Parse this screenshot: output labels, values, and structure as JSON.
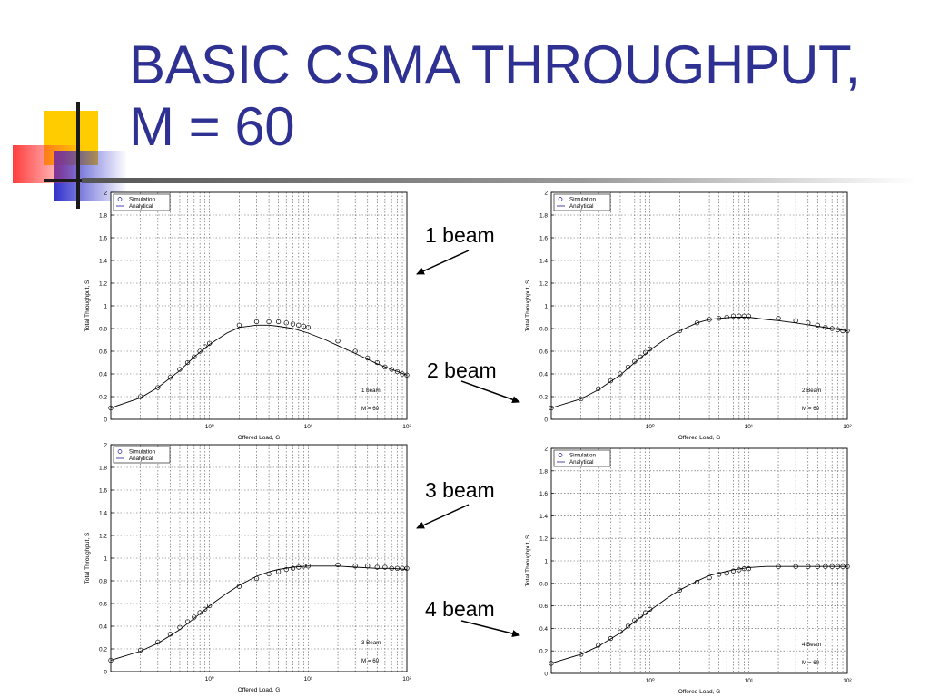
{
  "slide": {
    "title": "BASIC CSMA THROUGHPUT, M = 60",
    "title_color": "#2e3192",
    "accent_colors": {
      "yellow": "#ffcc00",
      "blue": "#3333cc",
      "red": "#ff3333",
      "dark": "#1a1a1a"
    }
  },
  "callouts": [
    {
      "label": "1 beam",
      "points_to": "top-left"
    },
    {
      "label": "2 beam",
      "points_to": "top-right"
    },
    {
      "label": "3 beam",
      "points_to": "bottom-left"
    },
    {
      "label": "4 beam",
      "points_to": "bottom-right"
    }
  ],
  "chart_data": [
    {
      "type": "line",
      "xscale": "log",
      "xlim": [
        0.1,
        100
      ],
      "ylim": [
        0,
        2
      ],
      "xlabel": "Offered Load, G",
      "ylabel": "Total Throughput, S",
      "xtick_labels": [
        "10⁰",
        "10¹",
        "10²"
      ],
      "ytick_labels": [
        "0",
        "0.2",
        "0.4",
        "0.6",
        "0.8",
        "1",
        "1.2",
        "1.4",
        "1.6",
        "1.8",
        "2"
      ],
      "grid": true,
      "legend_position": "top-left",
      "annotation": [
        "1 beam",
        "M = 60"
      ],
      "series": [
        {
          "name": "Simulation",
          "marker": "circle",
          "x": [
            0.1,
            0.2,
            0.3,
            0.4,
            0.5,
            0.6,
            0.7,
            0.8,
            0.9,
            1,
            2,
            3,
            4,
            5,
            6,
            7,
            8,
            9,
            10,
            20,
            30,
            40,
            50,
            60,
            70,
            80,
            90,
            100
          ],
          "y": [
            0.1,
            0.2,
            0.28,
            0.37,
            0.44,
            0.5,
            0.55,
            0.6,
            0.64,
            0.67,
            0.83,
            0.86,
            0.86,
            0.86,
            0.85,
            0.84,
            0.83,
            0.82,
            0.81,
            0.69,
            0.6,
            0.54,
            0.5,
            0.46,
            0.44,
            0.42,
            0.4,
            0.39
          ]
        },
        {
          "name": "Analytical",
          "marker": "line",
          "x": [
            0.1,
            0.2,
            0.3,
            0.5,
            0.7,
            1,
            1.5,
            2,
            3,
            4,
            5,
            7,
            10,
            15,
            20,
            30,
            50,
            70,
            100
          ],
          "y": [
            0.1,
            0.19,
            0.28,
            0.43,
            0.55,
            0.66,
            0.76,
            0.81,
            0.83,
            0.83,
            0.82,
            0.8,
            0.76,
            0.7,
            0.65,
            0.58,
            0.49,
            0.44,
            0.39
          ]
        }
      ]
    },
    {
      "type": "line",
      "xscale": "log",
      "xlim": [
        0.1,
        100
      ],
      "ylim": [
        0,
        2
      ],
      "xlabel": "Offered Load, G",
      "ylabel": "Total Throughput, S",
      "xtick_labels": [
        "10⁰",
        "10¹",
        "10²"
      ],
      "ytick_labels": [
        "0",
        "0.2",
        "0.4",
        "0.6",
        "0.8",
        "1",
        "1.2",
        "1.4",
        "1.6",
        "1.8",
        "2"
      ],
      "grid": true,
      "legend_position": "top-left",
      "annotation": [
        "2 Beam",
        "M = 60"
      ],
      "series": [
        {
          "name": "Simulation",
          "marker": "circle",
          "x": [
            0.1,
            0.2,
            0.3,
            0.4,
            0.5,
            0.6,
            0.7,
            0.8,
            0.9,
            1,
            2,
            3,
            4,
            5,
            6,
            7,
            8,
            9,
            10,
            20,
            30,
            40,
            50,
            60,
            70,
            80,
            90,
            100
          ],
          "y": [
            0.1,
            0.18,
            0.27,
            0.34,
            0.4,
            0.46,
            0.51,
            0.55,
            0.59,
            0.62,
            0.78,
            0.85,
            0.88,
            0.89,
            0.9,
            0.91,
            0.91,
            0.91,
            0.91,
            0.89,
            0.87,
            0.85,
            0.83,
            0.81,
            0.8,
            0.79,
            0.78,
            0.78
          ]
        },
        {
          "name": "Analytical",
          "marker": "line",
          "x": [
            0.1,
            0.2,
            0.3,
            0.5,
            0.7,
            1,
            1.5,
            2,
            3,
            4,
            5,
            7,
            10,
            15,
            20,
            30,
            50,
            70,
            100
          ],
          "y": [
            0.1,
            0.18,
            0.26,
            0.39,
            0.5,
            0.61,
            0.72,
            0.78,
            0.85,
            0.88,
            0.89,
            0.9,
            0.9,
            0.88,
            0.87,
            0.85,
            0.82,
            0.8,
            0.78
          ]
        }
      ]
    },
    {
      "type": "line",
      "xscale": "log",
      "xlim": [
        0.1,
        100
      ],
      "ylim": [
        0,
        2
      ],
      "xlabel": "Offered Load, G",
      "ylabel": "Total Throughput, S",
      "xtick_labels": [
        "10⁰",
        "10¹",
        "10²"
      ],
      "ytick_labels": [
        "0",
        "0.2",
        "0.4",
        "0.6",
        "0.8",
        "1",
        "1.2",
        "1.4",
        "1.6",
        "1.8",
        "2"
      ],
      "grid": true,
      "legend_position": "top-left",
      "annotation": [
        "3 Beam",
        "M = 60"
      ],
      "series": [
        {
          "name": "Simulation",
          "marker": "circle",
          "x": [
            0.1,
            0.2,
            0.3,
            0.4,
            0.5,
            0.6,
            0.7,
            0.8,
            0.9,
            1,
            2,
            3,
            4,
            5,
            6,
            7,
            8,
            9,
            10,
            20,
            30,
            40,
            50,
            60,
            70,
            80,
            90,
            100
          ],
          "y": [
            0.1,
            0.19,
            0.26,
            0.33,
            0.39,
            0.44,
            0.48,
            0.52,
            0.55,
            0.58,
            0.75,
            0.82,
            0.86,
            0.88,
            0.9,
            0.91,
            0.92,
            0.93,
            0.93,
            0.94,
            0.93,
            0.93,
            0.92,
            0.92,
            0.91,
            0.91,
            0.91,
            0.91
          ]
        },
        {
          "name": "Analytical",
          "marker": "line",
          "x": [
            0.1,
            0.2,
            0.3,
            0.5,
            0.7,
            1,
            1.5,
            2,
            3,
            4,
            5,
            7,
            10,
            15,
            20,
            30,
            50,
            70,
            100
          ],
          "y": [
            0.1,
            0.18,
            0.25,
            0.37,
            0.47,
            0.58,
            0.69,
            0.76,
            0.84,
            0.88,
            0.9,
            0.92,
            0.93,
            0.93,
            0.93,
            0.92,
            0.91,
            0.91,
            0.9
          ]
        }
      ]
    },
    {
      "type": "line",
      "xscale": "log",
      "xlim": [
        0.1,
        100
      ],
      "ylim": [
        0,
        2
      ],
      "xlabel": "Offered Load, G",
      "ylabel": "Total Throughput, S",
      "xtick_labels": [
        "10⁰",
        "10¹",
        "10²"
      ],
      "ytick_labels": [
        "0",
        "0.2",
        "0.4",
        "0.6",
        "0.8",
        "1",
        "1.2",
        "1.4",
        "1.6",
        "1.8",
        "2"
      ],
      "grid": true,
      "legend_position": "top-left",
      "annotation": [
        "4 Beam",
        "M = 60"
      ],
      "series": [
        {
          "name": "Simulation",
          "marker": "circle",
          "x": [
            0.1,
            0.2,
            0.3,
            0.4,
            0.5,
            0.6,
            0.7,
            0.8,
            0.9,
            1,
            2,
            3,
            4,
            5,
            6,
            7,
            8,
            9,
            10,
            20,
            30,
            40,
            50,
            60,
            70,
            80,
            90,
            100
          ],
          "y": [
            0.09,
            0.17,
            0.25,
            0.31,
            0.37,
            0.42,
            0.47,
            0.51,
            0.54,
            0.57,
            0.74,
            0.81,
            0.85,
            0.88,
            0.89,
            0.91,
            0.92,
            0.93,
            0.93,
            0.95,
            0.95,
            0.95,
            0.95,
            0.95,
            0.95,
            0.95,
            0.95,
            0.95
          ]
        },
        {
          "name": "Analytical",
          "marker": "line",
          "x": [
            0.1,
            0.2,
            0.3,
            0.5,
            0.7,
            1,
            1.5,
            2,
            3,
            4,
            5,
            7,
            10,
            15,
            20,
            30,
            50,
            70,
            100
          ],
          "y": [
            0.09,
            0.17,
            0.24,
            0.36,
            0.46,
            0.56,
            0.67,
            0.74,
            0.82,
            0.87,
            0.89,
            0.92,
            0.94,
            0.95,
            0.95,
            0.95,
            0.95,
            0.95,
            0.95
          ]
        }
      ]
    }
  ]
}
